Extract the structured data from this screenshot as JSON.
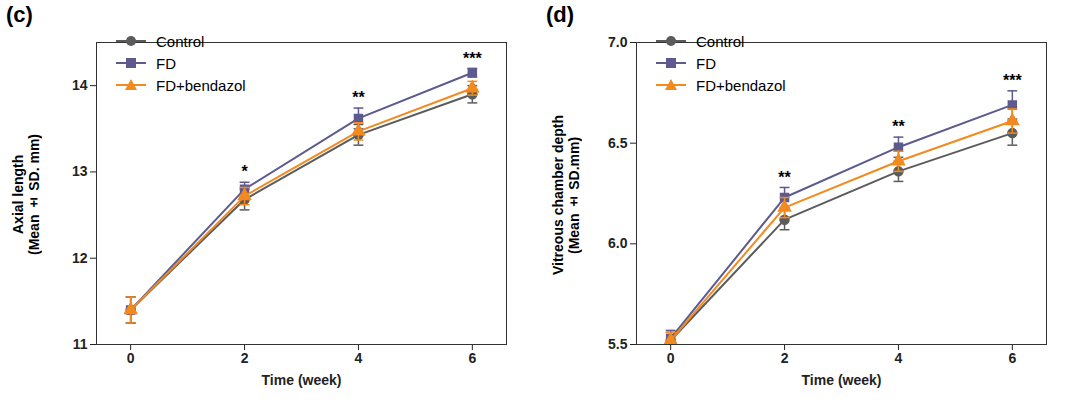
{
  "chart_data": [
    {
      "type": "line",
      "title": "(c)",
      "ylabel": "Axial length\n(Mean ± SD. mm)",
      "xlabel": "Time (week)",
      "x": [
        0,
        2,
        4,
        6
      ],
      "series": [
        {
          "name": "Control",
          "color": "#5b5b5b",
          "marker": "circle",
          "values": [
            11.4,
            12.68,
            13.43,
            13.9
          ],
          "errors": [
            0.15,
            0.12,
            0.12,
            0.1
          ]
        },
        {
          "name": "FD",
          "color": "#5c5a8e",
          "marker": "square",
          "values": [
            11.4,
            12.8,
            13.62,
            14.15
          ],
          "errors": [
            0.15,
            0.08,
            0.12,
            0.05
          ]
        },
        {
          "name": "FD+bendazol",
          "color": "#f28a1e",
          "marker": "triangle",
          "values": [
            11.4,
            12.72,
            13.47,
            13.97
          ],
          "errors": [
            0.15,
            0.1,
            0.1,
            0.08
          ]
        }
      ],
      "annotations": [
        {
          "x": 2,
          "text": "*"
        },
        {
          "x": 4,
          "text": "**"
        },
        {
          "x": 6,
          "text": "***"
        }
      ],
      "xlim": [
        -0.6,
        6.6
      ],
      "xticks": [
        0,
        2,
        4,
        6
      ],
      "ylim": [
        11,
        14.5
      ],
      "yticks": [
        11,
        12,
        13,
        14
      ],
      "legend": "upper left",
      "grid": false
    },
    {
      "type": "line",
      "title": "(d)",
      "ylabel": "Vitreous chamber depth\n(Mean ± SD.mm)",
      "xlabel": "Time (week)",
      "x": [
        0,
        2,
        4,
        6
      ],
      "series": [
        {
          "name": "Control",
          "color": "#5b5b5b",
          "marker": "circle",
          "values": [
            5.52,
            6.12,
            6.36,
            6.55
          ],
          "errors": [
            0.04,
            0.05,
            0.05,
            0.06
          ]
        },
        {
          "name": "FD",
          "color": "#5c5a8e",
          "marker": "square",
          "values": [
            5.53,
            6.23,
            6.48,
            6.69
          ],
          "errors": [
            0.04,
            0.05,
            0.05,
            0.07
          ]
        },
        {
          "name": "FD+bendazol",
          "color": "#f28a1e",
          "marker": "triangle",
          "values": [
            5.52,
            6.18,
            6.41,
            6.61
          ],
          "errors": [
            0.04,
            0.05,
            0.05,
            0.06
          ]
        }
      ],
      "annotations": [
        {
          "x": 2,
          "text": "**"
        },
        {
          "x": 4,
          "text": "**"
        },
        {
          "x": 6,
          "text": "***"
        }
      ],
      "xlim": [
        -0.6,
        6.6
      ],
      "xticks": [
        0,
        2,
        4,
        6
      ],
      "ylim": [
        5.5,
        7.0
      ],
      "yticks": [
        5.5,
        {
          "value": 6,
          "label": "6.0"
        },
        6.5,
        {
          "value": 7,
          "label": "7.0"
        }
      ],
      "legend": "upper left",
      "grid": false
    }
  ]
}
